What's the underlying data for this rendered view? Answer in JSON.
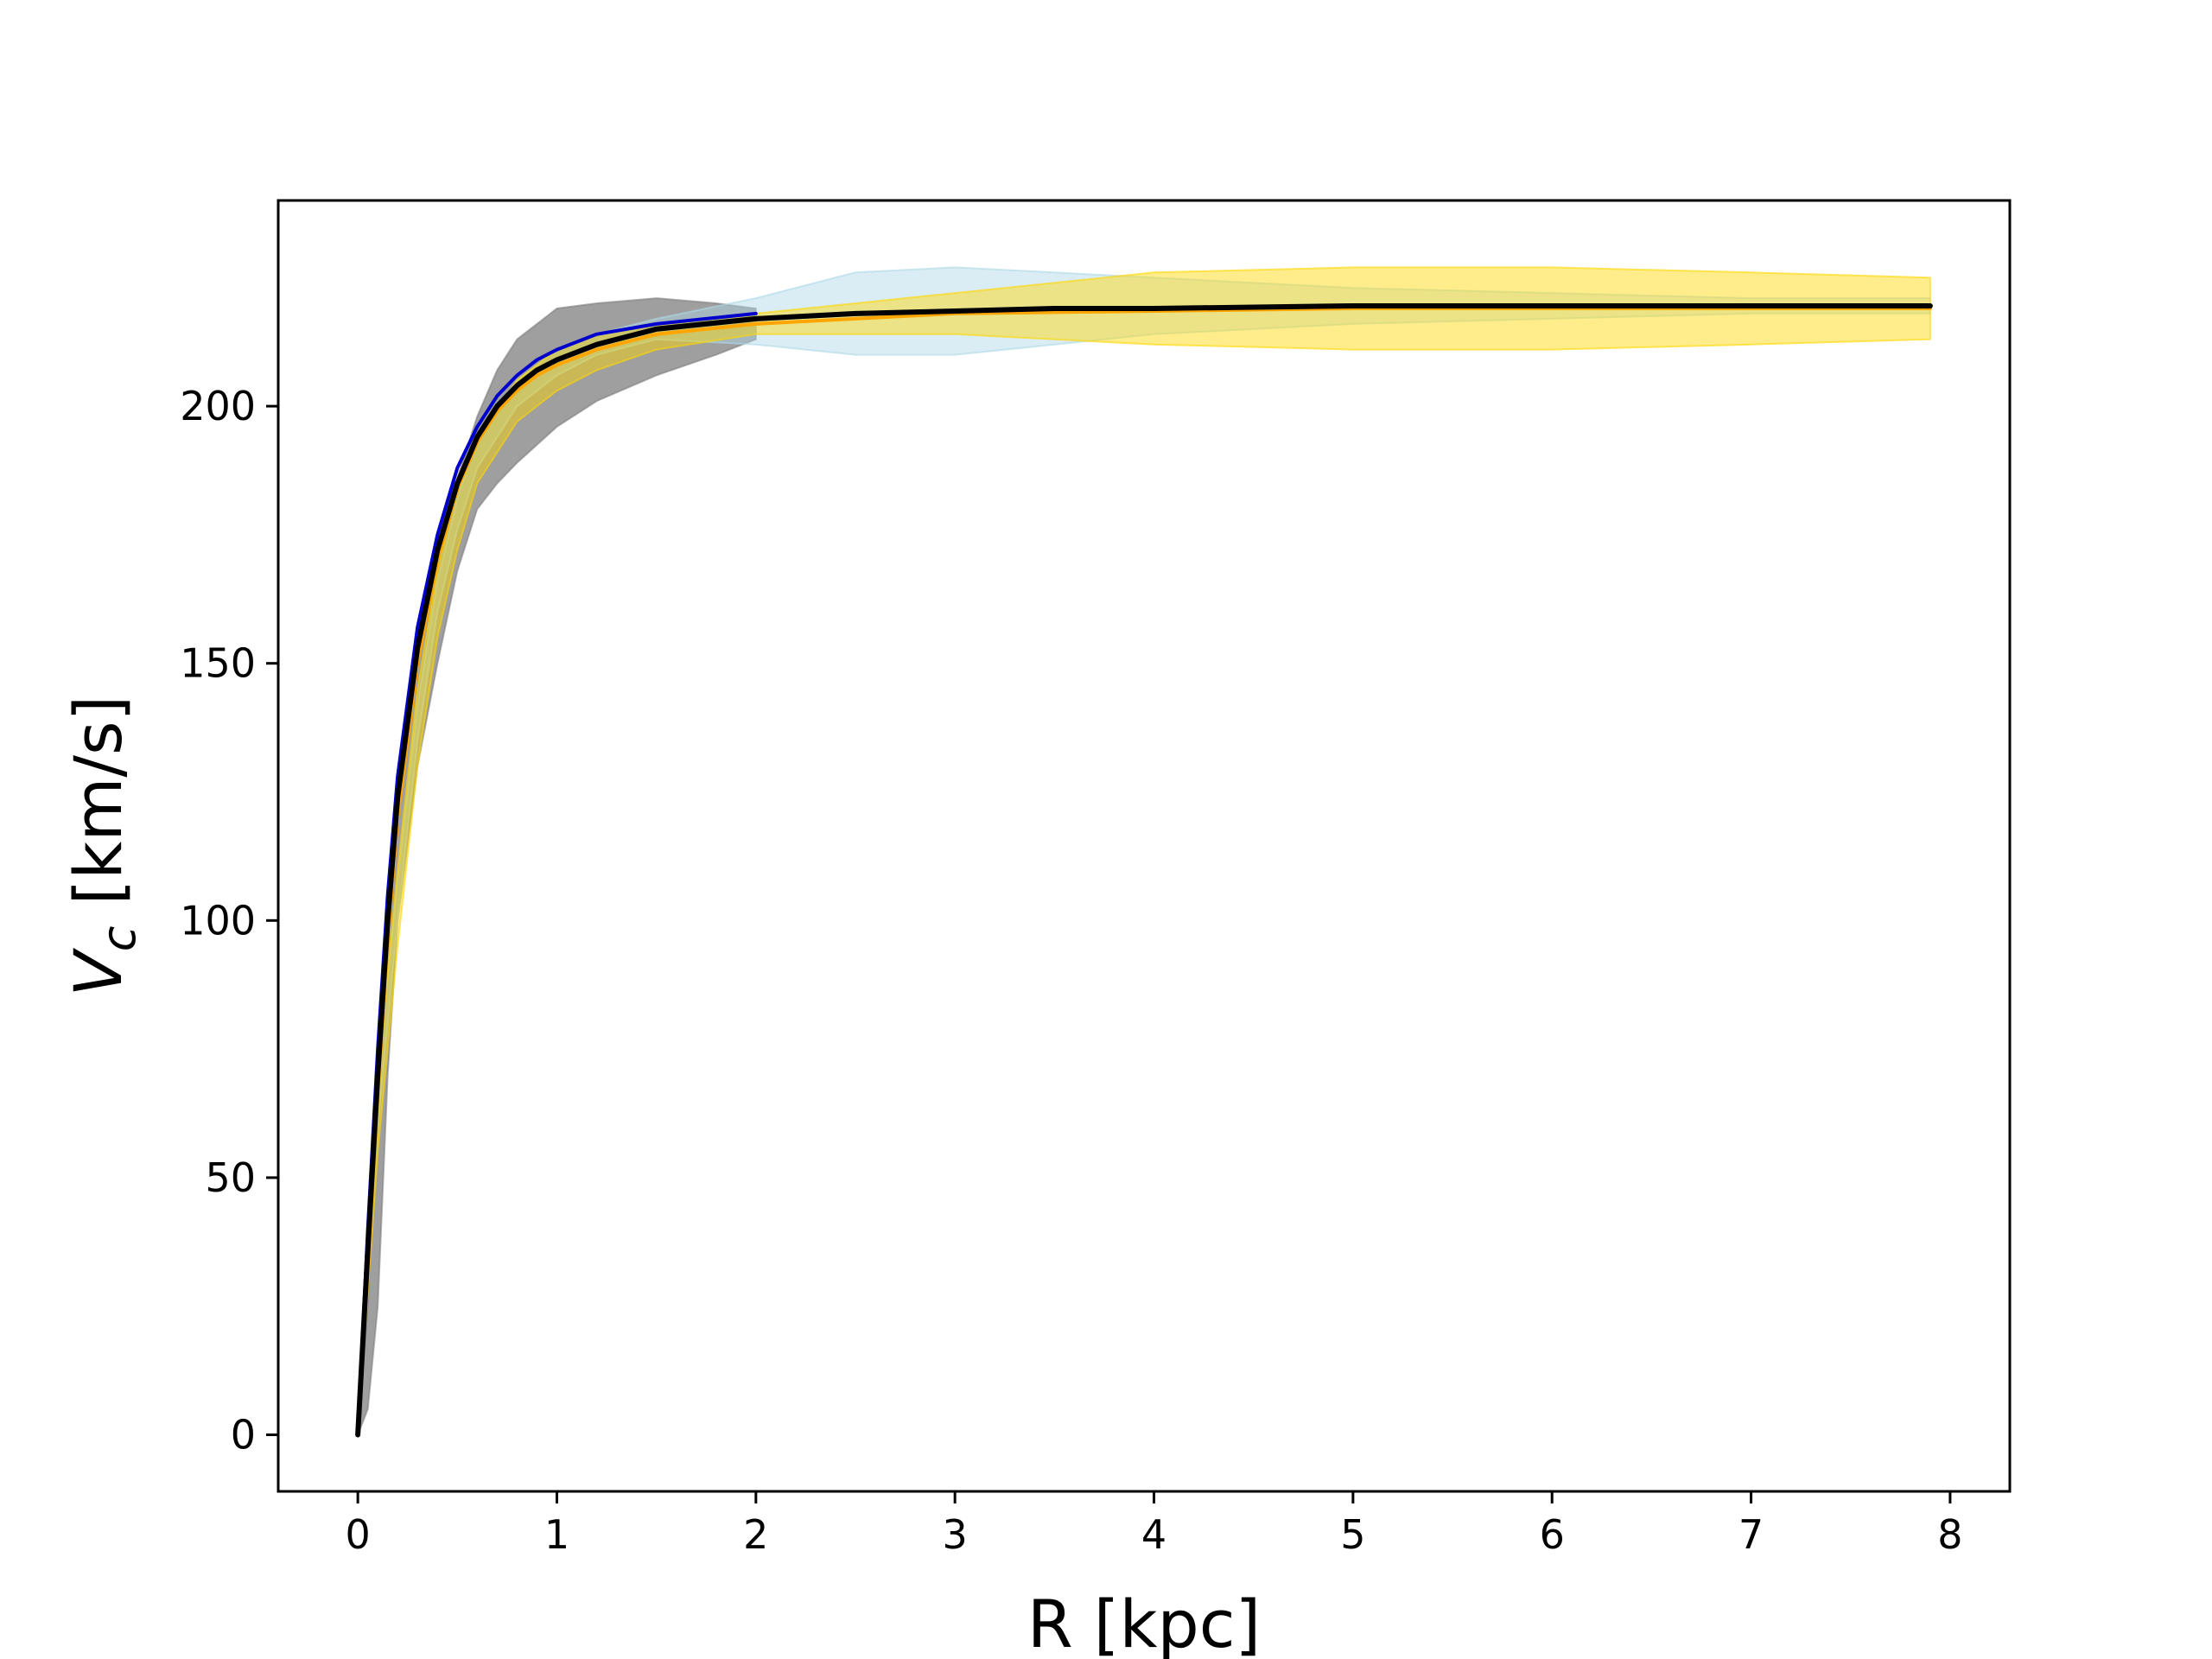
{
  "chart_data": {
    "type": "line",
    "title": "",
    "xlabel": "R [kpc]",
    "ylabel_main": "V",
    "ylabel_sub": "c",
    "ylabel_unit": " [km/s]",
    "xlim": [
      -0.4,
      8.3
    ],
    "ylim": [
      -11,
      240
    ],
    "xticks": [
      0,
      1,
      2,
      3,
      4,
      5,
      6,
      7,
      8
    ],
    "yticks": [
      0,
      50,
      100,
      150,
      200
    ],
    "grid": false,
    "legend": "none",
    "colors": {
      "gray_band": "#7f7f7f",
      "lightblue_band": "#add8e6",
      "gold_band": "#ffd700",
      "orange_line": "#ffa500",
      "blue_line": "#0000cd",
      "black_line": "#000000"
    },
    "series": [
      {
        "kind": "band",
        "color": "gray_band",
        "x": [
          0,
          0.05,
          0.1,
          0.15,
          0.2,
          0.3,
          0.4,
          0.5,
          0.6,
          0.7,
          0.8,
          1.0,
          1.2,
          1.5,
          1.8,
          2.0
        ],
        "lower": [
          0,
          5,
          25,
          70,
          100,
          130,
          150,
          168,
          180,
          185,
          189,
          196,
          201,
          206,
          210,
          213
        ],
        "upper": [
          0,
          25,
          65,
          95,
          120,
          150,
          170,
          186,
          198,
          207,
          213,
          219,
          220,
          221,
          220,
          219
        ]
      },
      {
        "kind": "band",
        "color": "lightblue_band",
        "x": [
          0,
          0.1,
          0.2,
          0.3,
          0.4,
          0.5,
          0.6,
          0.8,
          1.0,
          1.2,
          1.5,
          2.0,
          2.5,
          3.0,
          3.5,
          4.0,
          5.0,
          6.0,
          7.0,
          7.9
        ],
        "lower": [
          0,
          60,
          100,
          135,
          160,
          176,
          188,
          200,
          206,
          210,
          213,
          212,
          210,
          210,
          212,
          214,
          216,
          217,
          218,
          218
        ],
        "upper": [
          0,
          70,
          108,
          142,
          166,
          182,
          194,
          205,
          211,
          214,
          217,
          221,
          226,
          227,
          226,
          225,
          223,
          222,
          221,
          221
        ]
      },
      {
        "kind": "band",
        "color": "gold_band",
        "x": [
          0,
          0.1,
          0.2,
          0.3,
          0.4,
          0.5,
          0.6,
          0.8,
          1.0,
          1.2,
          1.5,
          2.0,
          3.0,
          4.0,
          5.0,
          6.0,
          7.0,
          7.9
        ],
        "lower": [
          0,
          55,
          95,
          130,
          155,
          172,
          185,
          197,
          203,
          207,
          211,
          214,
          214,
          212,
          211,
          211,
          212,
          213
        ],
        "upper": [
          0,
          70,
          110,
          145,
          168,
          184,
          194,
          205,
          211,
          214,
          216,
          218,
          222,
          226,
          227,
          227,
          226,
          225
        ]
      },
      {
        "kind": "line",
        "color": "blue_line",
        "x": [
          0,
          0.05,
          0.1,
          0.15,
          0.2,
          0.3,
          0.4,
          0.5,
          0.6,
          0.7,
          0.8,
          0.9,
          1.0,
          1.2,
          1.5,
          2.0
        ],
        "y": [
          0,
          40,
          75,
          105,
          128,
          157,
          175,
          188,
          196,
          202,
          206,
          209,
          211,
          214,
          216,
          218
        ]
      },
      {
        "kind": "line",
        "color": "orange_line",
        "x": [
          0,
          0.05,
          0.1,
          0.15,
          0.2,
          0.3,
          0.4,
          0.5,
          0.6,
          0.7,
          0.8,
          0.9,
          1.0,
          1.2,
          1.5,
          2.0,
          2.5,
          3.0,
          4.0,
          5.0,
          6.0,
          7.0,
          7.9
        ],
        "y": [
          0,
          32,
          66,
          96,
          120,
          150,
          170,
          184,
          193,
          199,
          203,
          206,
          208,
          211,
          214,
          216,
          217,
          218,
          218.5,
          219,
          219,
          219,
          219
        ]
      },
      {
        "kind": "line",
        "color": "black_line",
        "x": [
          0,
          0.05,
          0.1,
          0.15,
          0.2,
          0.3,
          0.4,
          0.5,
          0.6,
          0.7,
          0.8,
          0.9,
          1.0,
          1.2,
          1.5,
          2.0,
          2.5,
          3.0,
          3.5,
          4.0,
          5.0,
          6.0,
          7.0,
          7.9
        ],
        "y": [
          0,
          36,
          70,
          100,
          124,
          153,
          172,
          185,
          194,
          200,
          204,
          207,
          209,
          212,
          215,
          217,
          218,
          218.5,
          219,
          219,
          219.5,
          219.5,
          219.5,
          219.5
        ]
      }
    ]
  }
}
